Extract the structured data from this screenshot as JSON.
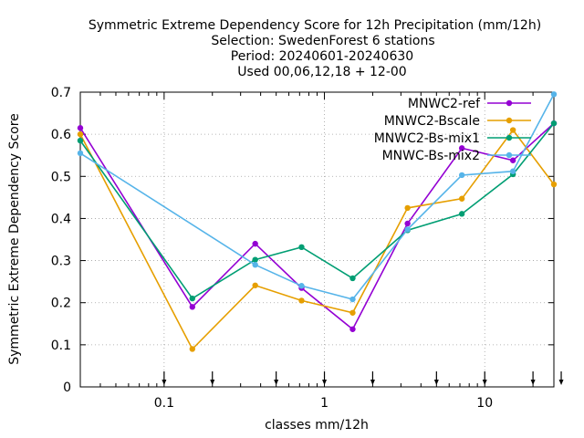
{
  "chart_data": {
    "type": "line",
    "title_lines": [
      "Symmetric Extreme Dependency Score  for 12h Precipitation (mm/12h)",
      "Selection: SwedenForest      6 stations",
      "Period: 20240601-20240630",
      "Used 00,06,12,18 + 12-00"
    ],
    "xlabel": "classes mm/12h",
    "ylabel": "Symmetric Extreme Dependency Score",
    "x_scale": "log",
    "xlim": [
      0.03,
      27
    ],
    "ylim": [
      0,
      0.7
    ],
    "x_ticks": [
      0.1,
      1,
      10
    ],
    "x_tick_labels": [
      "0.1",
      "1",
      "10"
    ],
    "y_ticks": [
      0,
      0.1,
      0.2,
      0.3,
      0.4,
      0.5,
      0.6,
      0.7
    ],
    "y_tick_labels": [
      "0",
      "0.1",
      "0.2",
      "0.3",
      "0.4",
      "0.5",
      "0.6",
      "0.7"
    ],
    "grid": true,
    "legend_position": "top-right",
    "threshold_markers": [
      0.1,
      0.2,
      0.5,
      1,
      2,
      5,
      10,
      20,
      30
    ],
    "series": [
      {
        "name": "MNWC2-ref",
        "color": "#9400d3",
        "x": [
          0.03,
          0.15,
          0.37,
          0.72,
          1.5,
          3.3,
          7.2,
          15,
          27
        ],
        "y": [
          0.615,
          0.19,
          0.34,
          0.235,
          0.137,
          0.388,
          0.567,
          0.538,
          0.626
        ]
      },
      {
        "name": "MNWC2-Bscale",
        "color": "#e69f00",
        "x": [
          0.03,
          0.15,
          0.37,
          0.72,
          1.5,
          3.3,
          7.2,
          15,
          27
        ],
        "y": [
          0.6,
          0.09,
          0.241,
          0.205,
          0.176,
          0.425,
          0.447,
          0.61,
          0.481
        ]
      },
      {
        "name": "MNWC2-Bs-mix1",
        "color": "#009e73",
        "x": [
          0.03,
          0.15,
          0.37,
          0.72,
          1.5,
          3.3,
          7.2,
          15,
          27
        ],
        "y": [
          0.585,
          0.21,
          0.302,
          0.332,
          0.258,
          0.372,
          0.411,
          0.505,
          0.626
        ]
      },
      {
        "name": "MNWC-Bs-mix2",
        "color": "#56b4e9",
        "x": [
          0.03,
          0.37,
          0.72,
          1.5,
          3.3,
          7.2,
          15,
          27
        ],
        "y": [
          0.555,
          0.29,
          0.24,
          0.208,
          0.374,
          0.503,
          0.512,
          0.695
        ]
      }
    ]
  }
}
